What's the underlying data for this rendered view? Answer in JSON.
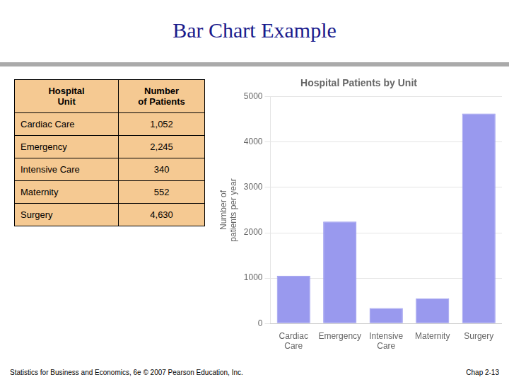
{
  "title": "Bar Chart Example",
  "chart_data": {
    "type": "bar",
    "title": "Hospital Patients by Unit",
    "categories": [
      "Cardiac\nCare",
      "Emergency",
      "Intensive\nCare",
      "Maternity",
      "Surgery"
    ],
    "values": [
      1052,
      2245,
      340,
      552,
      4630
    ],
    "color": "#9999ee",
    "ylabel": "Number of\npatients per year",
    "ylim": [
      0,
      5000
    ],
    "yticks": [
      0,
      1000,
      2000,
      3000,
      4000,
      5000
    ],
    "grid": true
  },
  "annotations": [
    "Hospital\nUnit",
    "Number\nof Patients",
    "Cardiac Care",
    "1,052",
    "Emergency",
    "2,245",
    "Intensive Care",
    "340",
    "Maternity",
    "552",
    "Surgery",
    "4,630",
    "Statistics for Business and Economics, 6e © 2007 Pearson Education, Inc.",
    "Chap 2-13"
  ]
}
